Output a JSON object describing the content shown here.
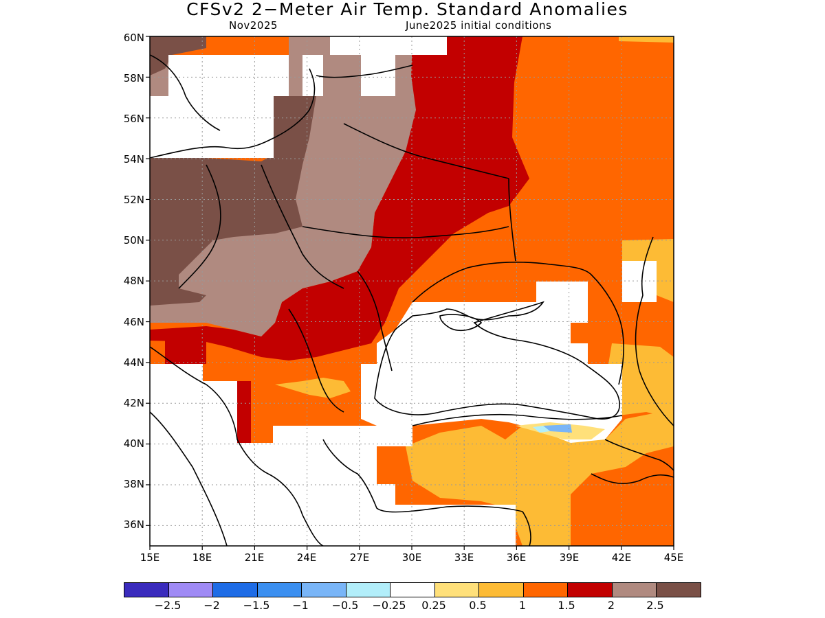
{
  "title": "CFSv2 2−Meter Air Temp. Standard Anomalies",
  "subtitle_left": "Nov2025",
  "subtitle_right": "June2025 initial conditions",
  "lat_labels": [
    "60N",
    "58N",
    "56N",
    "54N",
    "52N",
    "50N",
    "48N",
    "46N",
    "44N",
    "42N",
    "40N",
    "38N",
    "36N"
  ],
  "lon_labels": [
    "15E",
    "18E",
    "21E",
    "24E",
    "27E",
    "30E",
    "33E",
    "36E",
    "39E",
    "42E",
    "45E"
  ],
  "colorbar": {
    "colors": [
      "#3a2bbd",
      "#9f8af5",
      "#1e6ce6",
      "#3b8ff0",
      "#79b5f7",
      "#b2eefa",
      "#ffffff",
      "#ffe07a",
      "#fdbb35",
      "#ff6600",
      "#c20000",
      "#b08a80",
      "#7a5047"
    ],
    "labels": [
      "−2.5",
      "−2",
      "−1.5",
      "−1",
      "−0.5",
      "−0.25",
      "0.25",
      "0.5",
      "1",
      "1.5",
      "2",
      "2.5"
    ]
  },
  "map_colors": {
    "land_white": "#ffffff",
    "brown_dark": "#7a5047",
    "brown_light": "#b08a80",
    "dark_red": "#c20000",
    "orange": "#ff6600",
    "light_orange": "#fdbb35",
    "pale_yellow": "#ffe07a",
    "light_blue": "#79b5f7",
    "pale_blue": "#b2eefa",
    "grid": "#999999"
  }
}
